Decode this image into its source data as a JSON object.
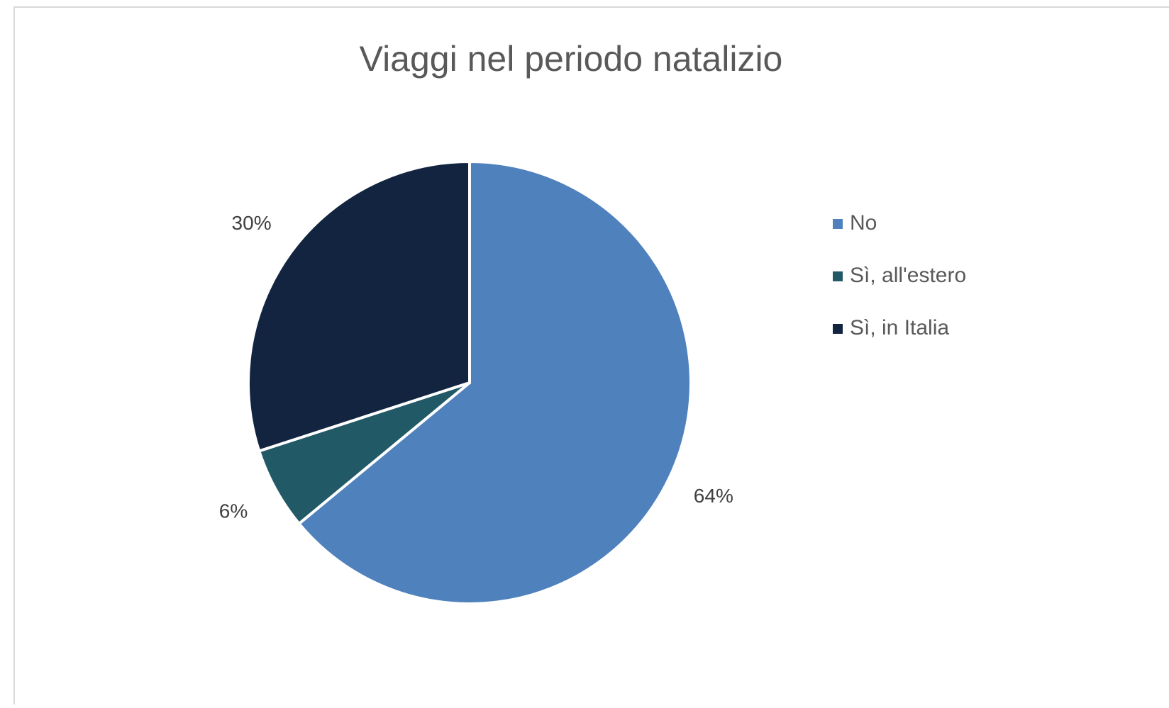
{
  "chart_data": {
    "type": "pie",
    "title": "Viaggi nel periodo natalizio",
    "categories": [
      "No",
      "Sì, all'estero",
      "Sì, in Italia"
    ],
    "values": [
      64,
      6,
      30
    ],
    "value_labels": [
      "64%",
      "6%",
      "30%"
    ],
    "colors": [
      "#4f81bd",
      "#215967",
      "#12243f"
    ],
    "legend": "right"
  }
}
